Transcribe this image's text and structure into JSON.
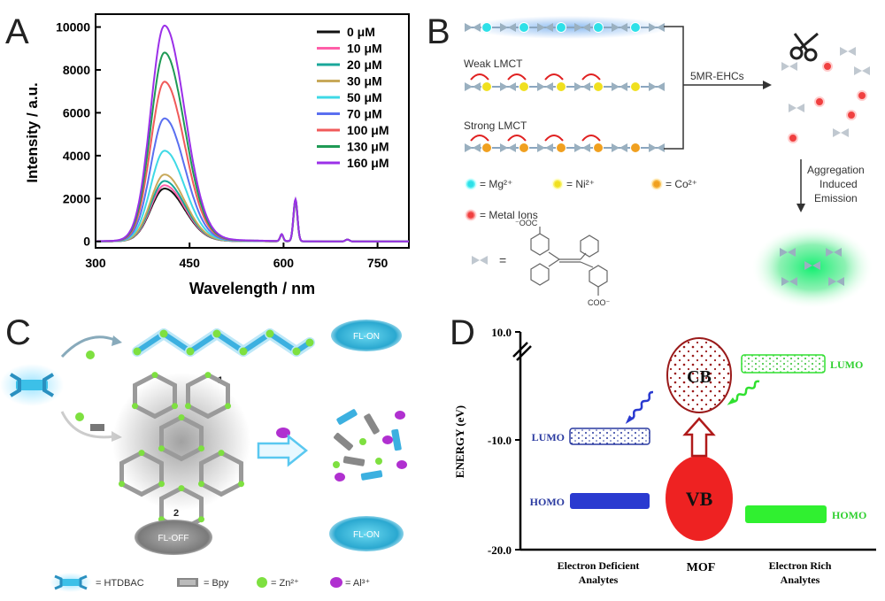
{
  "panels": {
    "A": {
      "letter": "A",
      "chart_data": {
        "type": "line",
        "xlabel": "Wavelength / nm",
        "ylabel": "Intensity / a.u.",
        "xlim": [
          300,
          800
        ],
        "ylim": [
          -300,
          10600
        ],
        "xticks": [
          "300",
          "450",
          "600",
          "750"
        ],
        "xtick_values": [
          300,
          450,
          600,
          750
        ],
        "yticks": [
          "0",
          "2000",
          "4000",
          "6000",
          "8000",
          "10000"
        ],
        "ytick_values": [
          0,
          2000,
          4000,
          6000,
          8000,
          10000
        ],
        "legend_position": "top-right",
        "series": [
          {
            "name": "0 μM",
            "color": "#111111",
            "peak": 2450,
            "peak2": 1800
          },
          {
            "name": "10 μM",
            "color": "#ff5fa8",
            "peak": 2600,
            "peak2": 1820
          },
          {
            "name": "20 μM",
            "color": "#1aa79a",
            "peak": 2800,
            "peak2": 1840
          },
          {
            "name": "30 μM",
            "color": "#c8a95a",
            "peak": 3100,
            "peak2": 1860
          },
          {
            "name": "50 μM",
            "color": "#3fd9e6",
            "peak": 4200,
            "peak2": 1880
          },
          {
            "name": "70 μM",
            "color": "#5a6ff0",
            "peak": 5700,
            "peak2": 1900
          },
          {
            "name": "100 μM",
            "color": "#f05a5a",
            "peak": 7400,
            "peak2": 1920
          },
          {
            "name": "130 μM",
            "color": "#1f9a55",
            "peak": 8750,
            "peak2": 1940
          },
          {
            "name": "160 μM",
            "color": "#9b30e8",
            "peak": 10000,
            "peak2": 1960
          }
        ]
      }
    },
    "B": {
      "letter": "B",
      "weak_label": "Weak LMCT",
      "strong_label": "Strong LMCT",
      "arrow_label": "5MR-EHCs",
      "aggregation_label": [
        "Aggregation",
        "Induced",
        "Emission"
      ],
      "legend": {
        "mg": "= Mg²⁺",
        "ni": "= Ni²⁺",
        "co": "= Co²⁺",
        "metal": "= Metal Ions",
        "ligand_eq": "="
      },
      "chem_labels": {
        "top": "⁻OOC",
        "bottom": "COO⁻"
      },
      "colors": {
        "mg": "#2ee0e8",
        "ni": "#f0e020",
        "co": "#f0a020",
        "metal": "#f04040",
        "glow": "#20e070"
      }
    },
    "C": {
      "letter": "C",
      "label_1": "1",
      "label_2": "2",
      "fl_on_top": "FL-ON",
      "fl_off": "FL-OFF",
      "fl_on_bottom": "FL-ON",
      "legend": {
        "htdbac": "= HTDBAC",
        "bpy": "= Bpy",
        "zn": "= Zn²⁺",
        "al": "= Al³⁺"
      },
      "colors": {
        "zn": "#7ee040",
        "al": "#b030d0",
        "ligand": "#3cc0e8"
      }
    },
    "D": {
      "letter": "D",
      "ylabel": "ENERGY (eV)",
      "ytick_top": "10.0",
      "ytick_mid": "-10.0",
      "ytick_bottom": "-20.0",
      "left_lumo": "LUMO",
      "left_homo": "HOMO",
      "cb": "CB",
      "vb": "VB",
      "right_lumo": "LUMO",
      "right_homo": "HOMO",
      "x_left": [
        "Electron Deficient",
        "Analytes"
      ],
      "x_mid": "MOF",
      "x_right": [
        "Electron Rich",
        "Analytes"
      ],
      "colors": {
        "deficient": "#2a3aa0",
        "rich": "#30e030",
        "vb": "#ee2222",
        "cb": "#9a1a1a"
      }
    }
  }
}
